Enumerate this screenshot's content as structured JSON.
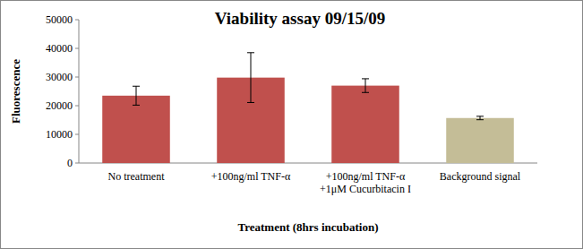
{
  "chart_data": {
    "type": "bar",
    "title": "Viability assay 09/15/09",
    "x_label": "Treatment (8hrs incubation)",
    "y_label": "Fluorescence",
    "categories": [
      "No treatment",
      "+100ng/ml TNF-α",
      "+100ng/ml TNF-α\n+1μM Cucurbitacin I",
      "Background signal"
    ],
    "values": [
      23500,
      29800,
      27000,
      15700
    ],
    "errors": [
      3300,
      8700,
      2400,
      600
    ],
    "colors": [
      "#c0504d",
      "#c0504d",
      "#c0504d",
      "#c4bd97"
    ],
    "ylim": [
      0,
      50000
    ],
    "yticks": [
      0,
      10000,
      20000,
      30000,
      40000,
      50000
    ],
    "grid": false
  }
}
